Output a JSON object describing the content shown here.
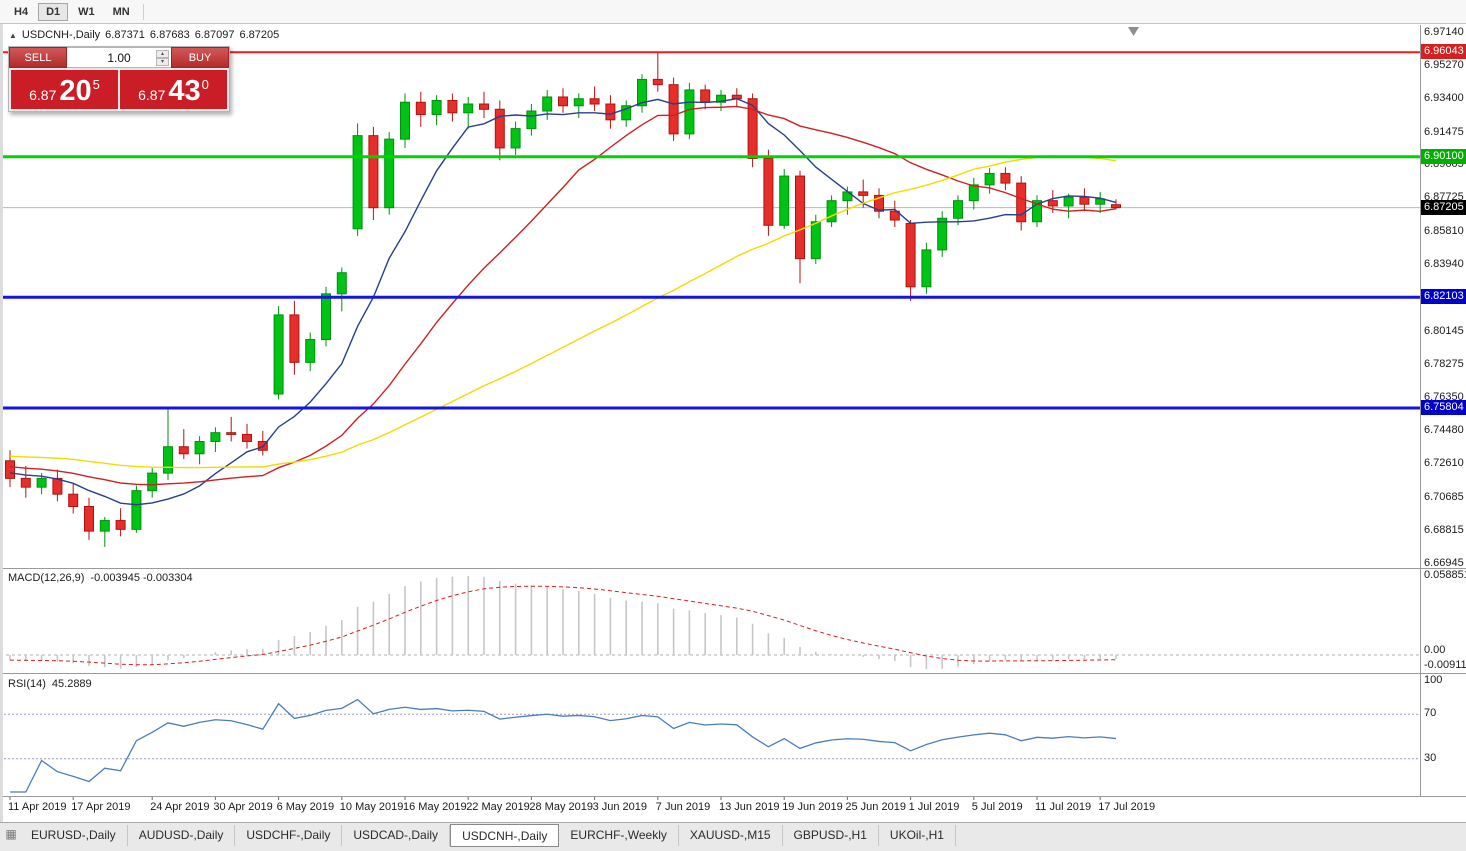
{
  "toolbar": {
    "timeframes": [
      "H4",
      "D1",
      "W1",
      "MN"
    ],
    "active": "D1"
  },
  "symbol_header": {
    "icon": "▲",
    "name": "USDCNH-,Daily",
    "open": "6.87371",
    "high": "6.87683",
    "low": "6.87097",
    "close": "6.87205"
  },
  "trade_panel": {
    "sell_label": "SELL",
    "buy_label": "BUY",
    "volume": "1.00",
    "sell_price": {
      "head": "6.87",
      "big": "20",
      "sup": "5"
    },
    "buy_price": {
      "head": "6.87",
      "big": "43",
      "sup": "0"
    }
  },
  "price_axis": {
    "labels": [
      "6.97140",
      "6.95270",
      "6.93400",
      "6.91475",
      "6.89605",
      "6.87725",
      "6.85810",
      "6.83940",
      "6.80145",
      "6.78275",
      "6.76350",
      "6.74480",
      "6.72610",
      "6.70685",
      "6.68815",
      "6.66945"
    ]
  },
  "panes": {
    "macd": {
      "name": "MACD(12,26,9)",
      "values": "-0.003945 -0.003304",
      "axis_labels": [
        "0.058851",
        "0.00",
        "-0.009116"
      ]
    },
    "rsi": {
      "name": "RSI(14)",
      "value": "45.2889",
      "axis_labels": [
        "100",
        "70",
        "30"
      ]
    }
  },
  "date_axis": {
    "ticks": [
      {
        "i": 0,
        "t": "11 Apr 2019"
      },
      {
        "i": 4,
        "t": "17 Apr 2019"
      },
      {
        "i": 9,
        "t": "24 Apr 2019"
      },
      {
        "i": 13,
        "t": "30 Apr 2019"
      },
      {
        "i": 17,
        "t": "6 May 2019"
      },
      {
        "i": 21,
        "t": "10 May 2019"
      },
      {
        "i": 25,
        "t": "16 May 2019"
      },
      {
        "i": 29,
        "t": "22 May 2019"
      },
      {
        "i": 33,
        "t": "28 May 2019"
      },
      {
        "i": 37,
        "t": "3 Jun 2019"
      },
      {
        "i": 41,
        "t": "7 Jun 2019"
      },
      {
        "i": 45,
        "t": "13 Jun 2019"
      },
      {
        "i": 49,
        "t": "19 Jun 2019"
      },
      {
        "i": 53,
        "t": "25 Jun 2019"
      },
      {
        "i": 57,
        "t": "1 Jul 2019"
      },
      {
        "i": 61,
        "t": "5 Jul 2019"
      },
      {
        "i": 65,
        "t": "11 Jul 2019"
      },
      {
        "i": 69,
        "t": "17 Jul 2019"
      }
    ]
  },
  "tabs": {
    "items": [
      "EURUSD-,Daily",
      "AUDUSD-,Daily",
      "USDCHF-,Daily",
      "USDCAD-,Daily",
      "USDCNH-,Daily",
      "EURCHF-,Weekly",
      "XAUUSD-,M15",
      "GBPUSD-,H1",
      "UKOil-,H1"
    ],
    "active_index": 4
  },
  "chart_data": {
    "type": "candlestick",
    "title": "USDCNH-,Daily",
    "x_range": [
      "11 Apr 2019",
      "18 Jul 2019"
    ],
    "ylim": [
      6.668,
      6.9714
    ],
    "candles": [
      [
        6.728,
        6.734,
        6.713,
        6.718
      ],
      [
        6.718,
        6.725,
        6.707,
        6.713
      ],
      [
        6.713,
        6.721,
        6.709,
        6.718
      ],
      [
        6.718,
        6.723,
        6.705,
        6.709
      ],
      [
        6.709,
        6.715,
        6.698,
        6.702
      ],
      [
        6.702,
        6.707,
        6.683,
        6.688
      ],
      [
        6.688,
        6.696,
        6.679,
        6.694
      ],
      [
        6.694,
        6.701,
        6.685,
        6.689
      ],
      [
        6.689,
        6.714,
        6.687,
        6.711
      ],
      [
        6.711,
        6.724,
        6.707,
        6.721
      ],
      [
        6.721,
        6.758,
        6.717,
        6.736
      ],
      [
        6.736,
        6.746,
        6.729,
        6.732
      ],
      [
        6.732,
        6.742,
        6.726,
        6.739
      ],
      [
        6.739,
        6.747,
        6.733,
        6.744
      ],
      [
        6.744,
        6.753,
        6.739,
        6.743
      ],
      [
        6.743,
        6.749,
        6.735,
        6.739
      ],
      [
        6.739,
        6.745,
        6.731,
        6.734
      ],
      [
        6.766,
        6.816,
        6.763,
        6.811
      ],
      [
        6.811,
        6.819,
        6.777,
        6.784
      ],
      [
        6.784,
        6.801,
        6.779,
        6.797
      ],
      [
        6.797,
        6.827,
        6.793,
        6.823
      ],
      [
        6.823,
        6.838,
        6.813,
        6.835
      ],
      [
        6.86,
        6.92,
        6.856,
        6.913
      ],
      [
        6.913,
        6.918,
        6.865,
        6.872
      ],
      [
        6.872,
        6.915,
        6.868,
        6.911
      ],
      [
        6.911,
        6.937,
        6.906,
        6.932
      ],
      [
        6.932,
        6.938,
        6.918,
        6.925
      ],
      [
        6.925,
        6.936,
        6.919,
        6.933
      ],
      [
        6.933,
        6.937,
        6.921,
        6.926
      ],
      [
        6.926,
        6.935,
        6.917,
        6.931
      ],
      [
        6.931,
        6.938,
        6.923,
        6.928
      ],
      [
        6.928,
        6.933,
        6.899,
        6.906
      ],
      [
        6.906,
        6.921,
        6.902,
        6.917
      ],
      [
        6.917,
        6.931,
        6.913,
        6.927
      ],
      [
        6.927,
        6.939,
        6.922,
        6.935
      ],
      [
        6.935,
        6.94,
        6.926,
        6.93
      ],
      [
        6.93,
        6.937,
        6.923,
        6.934
      ],
      [
        6.934,
        6.941,
        6.927,
        6.931
      ],
      [
        6.931,
        6.936,
        6.917,
        6.922
      ],
      [
        6.922,
        6.933,
        6.918,
        6.93
      ],
      [
        6.93,
        6.948,
        6.926,
        6.945
      ],
      [
        6.945,
        6.96,
        6.938,
        6.942
      ],
      [
        6.942,
        6.946,
        6.91,
        6.914
      ],
      [
        6.914,
        6.943,
        6.911,
        6.939
      ],
      [
        6.939,
        6.942,
        6.928,
        6.932
      ],
      [
        6.932,
        6.939,
        6.927,
        6.936
      ],
      [
        6.936,
        6.94,
        6.929,
        6.934
      ],
      [
        6.934,
        6.937,
        6.895,
        6.9
      ],
      [
        6.9,
        6.905,
        6.856,
        6.862
      ],
      [
        6.862,
        6.894,
        6.86,
        6.89
      ],
      [
        6.89,
        6.893,
        6.829,
        6.843
      ],
      [
        6.843,
        6.868,
        6.84,
        6.864
      ],
      [
        6.864,
        6.879,
        6.861,
        6.876
      ],
      [
        6.876,
        6.884,
        6.868,
        6.881
      ],
      [
        6.881,
        6.888,
        6.872,
        6.879
      ],
      [
        6.879,
        6.883,
        6.866,
        6.87
      ],
      [
        6.87,
        6.876,
        6.861,
        6.865
      ],
      [
        6.863,
        6.865,
        6.819,
        6.827
      ],
      [
        6.827,
        6.852,
        6.823,
        6.848
      ],
      [
        6.848,
        6.87,
        6.844,
        6.866
      ],
      [
        6.866,
        6.879,
        6.862,
        6.876
      ],
      [
        6.876,
        6.889,
        6.871,
        6.885
      ],
      [
        6.885,
        6.8945,
        6.88,
        6.8915
      ],
      [
        6.8915,
        6.895,
        6.882,
        6.886
      ],
      [
        6.886,
        6.89,
        6.859,
        6.864
      ],
      [
        6.864,
        6.879,
        6.861,
        6.876
      ],
      [
        6.876,
        6.882,
        6.869,
        6.873
      ],
      [
        6.873,
        6.88,
        6.866,
        6.878
      ],
      [
        6.878,
        6.883,
        6.87,
        6.874
      ],
      [
        6.874,
        6.881,
        6.869,
        6.877
      ],
      [
        6.87371,
        6.87683,
        6.87097,
        6.87205
      ]
    ],
    "warmup_close": [
      6.742,
      6.7414,
      6.7409,
      6.7403,
      6.7397,
      6.7392,
      6.7386,
      6.738,
      6.7375,
      6.7369,
      6.7363,
      6.7358,
      6.7352,
      6.7346,
      6.7341,
      6.7335,
      6.7329,
      6.7324,
      6.7318,
      6.7312,
      6.7307,
      6.7301,
      6.7295,
      6.729,
      6.7284,
      6.7278,
      6.7273,
      6.7267,
      6.7261,
      6.7256,
      6.725,
      6.7244,
      6.7239,
      6.7233,
      6.7227,
      6.7222,
      6.7216,
      6.721,
      6.7205,
      6.7199
    ],
    "moving_averages": [
      {
        "period": 8,
        "color": "#27408b"
      },
      {
        "period": 20,
        "color": "#cc2222"
      },
      {
        "period": 45,
        "color": "#f0dc00"
      }
    ],
    "colors": {
      "bull": "#00c414",
      "bull_stroke": "#00900e",
      "bear": "#e62e2a",
      "bear_stroke": "#b01410",
      "current_line": "#b8b8b8"
    },
    "hlines": [
      {
        "price": 6.96043,
        "color": "#ef1c1c",
        "width": 2,
        "label": "6.96043",
        "label_bg": "#d42020"
      },
      {
        "price": 6.901,
        "color": "#00d400",
        "width": 3,
        "label": "6.90100",
        "label_bg": "#00b000"
      },
      {
        "price": 6.82103,
        "color": "#1414e6",
        "width": 3,
        "label": "6.82103",
        "label_bg": "#0000cc"
      },
      {
        "price": 6.75804,
        "color": "#1414e6",
        "width": 3,
        "label": "6.75804",
        "label_bg": "#0000cc"
      }
    ],
    "current_price": {
      "price": 6.87205,
      "label": "6.87205",
      "label_bg": "#000000"
    },
    "macd": {
      "fast": 12,
      "slow": 26,
      "signal": 9,
      "current_macd": -0.003945,
      "current_signal": -0.003304,
      "axis_max": 0.058851,
      "axis_min": -0.009116,
      "hist_color": "#c6c6c6",
      "signal_color": "#d42020"
    },
    "rsi": {
      "period": 14,
      "current": 45.2889,
      "levels": [
        70,
        30
      ],
      "color": "#4a7ebb"
    }
  }
}
